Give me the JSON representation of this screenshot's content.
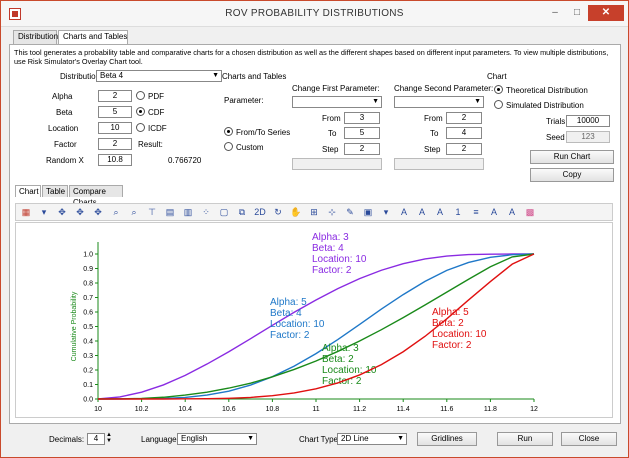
{
  "window": {
    "title": "ROV PROBABILITY DISTRIBUTIONS",
    "minimize": "–",
    "maximize": "□",
    "close": "✕"
  },
  "tabs": [
    {
      "label": "Distributions"
    },
    {
      "label": "Charts and Tables"
    }
  ],
  "description": "This tool generates a probability table and comparative charts for a chosen distribution as well as the different shapes based on different input parameters. To view multiple distributions, use Risk Simulator's Overlay Chart tool.",
  "distribution": {
    "label": "Distribution:",
    "value": "Beta 4"
  },
  "params": [
    {
      "label": "Alpha",
      "value": "2"
    },
    {
      "label": "Beta",
      "value": "5"
    },
    {
      "label": "Location",
      "value": "10"
    },
    {
      "label": "Factor",
      "value": "2"
    },
    {
      "label": "Random X",
      "value": "10.8"
    }
  ],
  "pdf_label": "PDF",
  "cdf_label": "CDF",
  "icdf_label": "ICDF",
  "result_label": "Result:",
  "result_value": "0.766720",
  "charts_tables_label": "Charts and Tables",
  "parameter_label": "Parameter:",
  "from_to_label": "From/To Series",
  "custom_label": "Custom",
  "change_first": {
    "label": "Change First Parameter:",
    "from": "3",
    "to": "5",
    "step": "2"
  },
  "change_second": {
    "label": "Change Second Parameter:",
    "from": "2",
    "to": "4",
    "step": "2"
  },
  "from_label": "From",
  "to_label": "To",
  "step_label": "Step",
  "chart_group": {
    "label": "Chart",
    "theoretical": "Theoretical Distribution",
    "simulated": "Simulated Distribution",
    "trials_label": "Trials",
    "trials_value": "10000",
    "seed_label": "Seed",
    "seed_value": "123",
    "run_chart": "Run Chart",
    "copy": "Copy"
  },
  "subtabs": [
    {
      "label": "Chart"
    },
    {
      "label": "Table"
    },
    {
      "label": "Compare Charts"
    }
  ],
  "toolbar_icons": [
    "bar-chart-icon",
    "dropdown-icon",
    "move-icon",
    "move-x-icon",
    "move-y-icon",
    "zoom-icon",
    "zoom-x-icon",
    "label-icon",
    "legend-icon",
    "data-labels-icon",
    "points-icon",
    "frame-icon",
    "copy-icon",
    "2d-icon",
    "rotate-icon",
    "pan-icon",
    "grid-icon",
    "axis-icon",
    "tools-icon",
    "color-icon",
    "palette-icon",
    "font-icon",
    "underline-icon",
    "text-icon",
    "font-size-icon",
    "align-icon",
    "font-up-icon",
    "font-down-icon",
    "color-grid-icon"
  ],
  "toolbar_text": {
    "two_d": "2D",
    "font_size": "1"
  },
  "bottom": {
    "decimals_label": "Decimals:",
    "decimals_value": "4",
    "language_label": "Language:",
    "language_value": "English",
    "chart_type_label": "Chart Type:",
    "chart_type_value": "2D Line",
    "gridlines": "Gridlines",
    "run": "Run",
    "close": "Close"
  },
  "chart_data": {
    "type": "line",
    "ylabel": "Cumulative Probability",
    "xlim": [
      10,
      12
    ],
    "ylim": [
      0,
      1
    ],
    "xticks": [
      "10",
      "10.2",
      "10.4",
      "10.6",
      "10.8",
      "11",
      "11.2",
      "11.4",
      "11.6",
      "11.8",
      "12"
    ],
    "yticks": [
      "0.0",
      "0.1",
      "0.2",
      "0.3",
      "0.4",
      "0.5",
      "0.6",
      "0.7",
      "0.8",
      "0.9",
      "1.0"
    ],
    "series": [
      {
        "color": "#8a2be2",
        "label_lines": [
          "Alpha: 3",
          "Beta: 4",
          "Location: 10",
          "Factor: 2"
        ],
        "x": [
          10,
          10.1,
          10.2,
          10.3,
          10.4,
          10.5,
          10.6,
          10.7,
          10.8,
          10.9,
          11,
          11.1,
          11.2,
          11.3,
          11.4,
          11.5,
          11.6,
          11.7,
          11.8,
          11.9,
          12
        ],
        "y": [
          0,
          0.014,
          0.047,
          0.097,
          0.163,
          0.241,
          0.326,
          0.416,
          0.508,
          0.598,
          0.683,
          0.761,
          0.83,
          0.888,
          0.933,
          0.966,
          0.986,
          0.996,
          0.999,
          1.0,
          1.0
        ]
      },
      {
        "color": "#1f78c8",
        "label_lines": [
          "Alpha: 5",
          "Beta: 4",
          "Location: 10",
          "Factor: 2"
        ],
        "x": [
          10,
          10.1,
          10.2,
          10.3,
          10.4,
          10.5,
          10.6,
          10.7,
          10.8,
          10.9,
          11,
          11.1,
          11.2,
          11.3,
          11.4,
          11.5,
          11.6,
          11.7,
          11.8,
          11.9,
          12
        ],
        "y": [
          0,
          0.0,
          0.001,
          0.004,
          0.011,
          0.027,
          0.054,
          0.096,
          0.154,
          0.227,
          0.313,
          0.41,
          0.514,
          0.62,
          0.72,
          0.811,
          0.887,
          0.942,
          0.977,
          0.995,
          1.0
        ]
      },
      {
        "color": "#1a8a1a",
        "label_lines": [
          "Alpha: 3",
          "Beta: 2",
          "Location: 10",
          "Factor: 2"
        ],
        "x": [
          10,
          10.1,
          10.2,
          10.3,
          10.4,
          10.5,
          10.6,
          10.7,
          10.8,
          10.9,
          11,
          11.1,
          11.2,
          11.3,
          11.4,
          11.5,
          11.6,
          11.7,
          11.8,
          11.9,
          12
        ],
        "y": [
          0,
          0.001,
          0.004,
          0.012,
          0.027,
          0.047,
          0.075,
          0.109,
          0.153,
          0.204,
          0.262,
          0.328,
          0.4,
          0.478,
          0.561,
          0.648,
          0.737,
          0.826,
          0.912,
          0.98,
          1.0
        ]
      },
      {
        "color": "#e01010",
        "label_lines": [
          "Alpha: 5",
          "Beta: 2",
          "Location: 10",
          "Factor: 2"
        ],
        "x": [
          10,
          10.1,
          10.2,
          10.3,
          10.4,
          10.5,
          10.6,
          10.7,
          10.8,
          10.9,
          11,
          11.1,
          11.2,
          11.3,
          11.4,
          11.5,
          11.6,
          11.7,
          11.8,
          11.9,
          12
        ],
        "y": [
          0,
          0,
          0,
          0,
          0.001,
          0.002,
          0.005,
          0.011,
          0.023,
          0.042,
          0.07,
          0.111,
          0.166,
          0.237,
          0.326,
          0.432,
          0.553,
          0.683,
          0.81,
          0.93,
          1.0
        ]
      }
    ],
    "grid": false,
    "legend": "inline labels"
  }
}
